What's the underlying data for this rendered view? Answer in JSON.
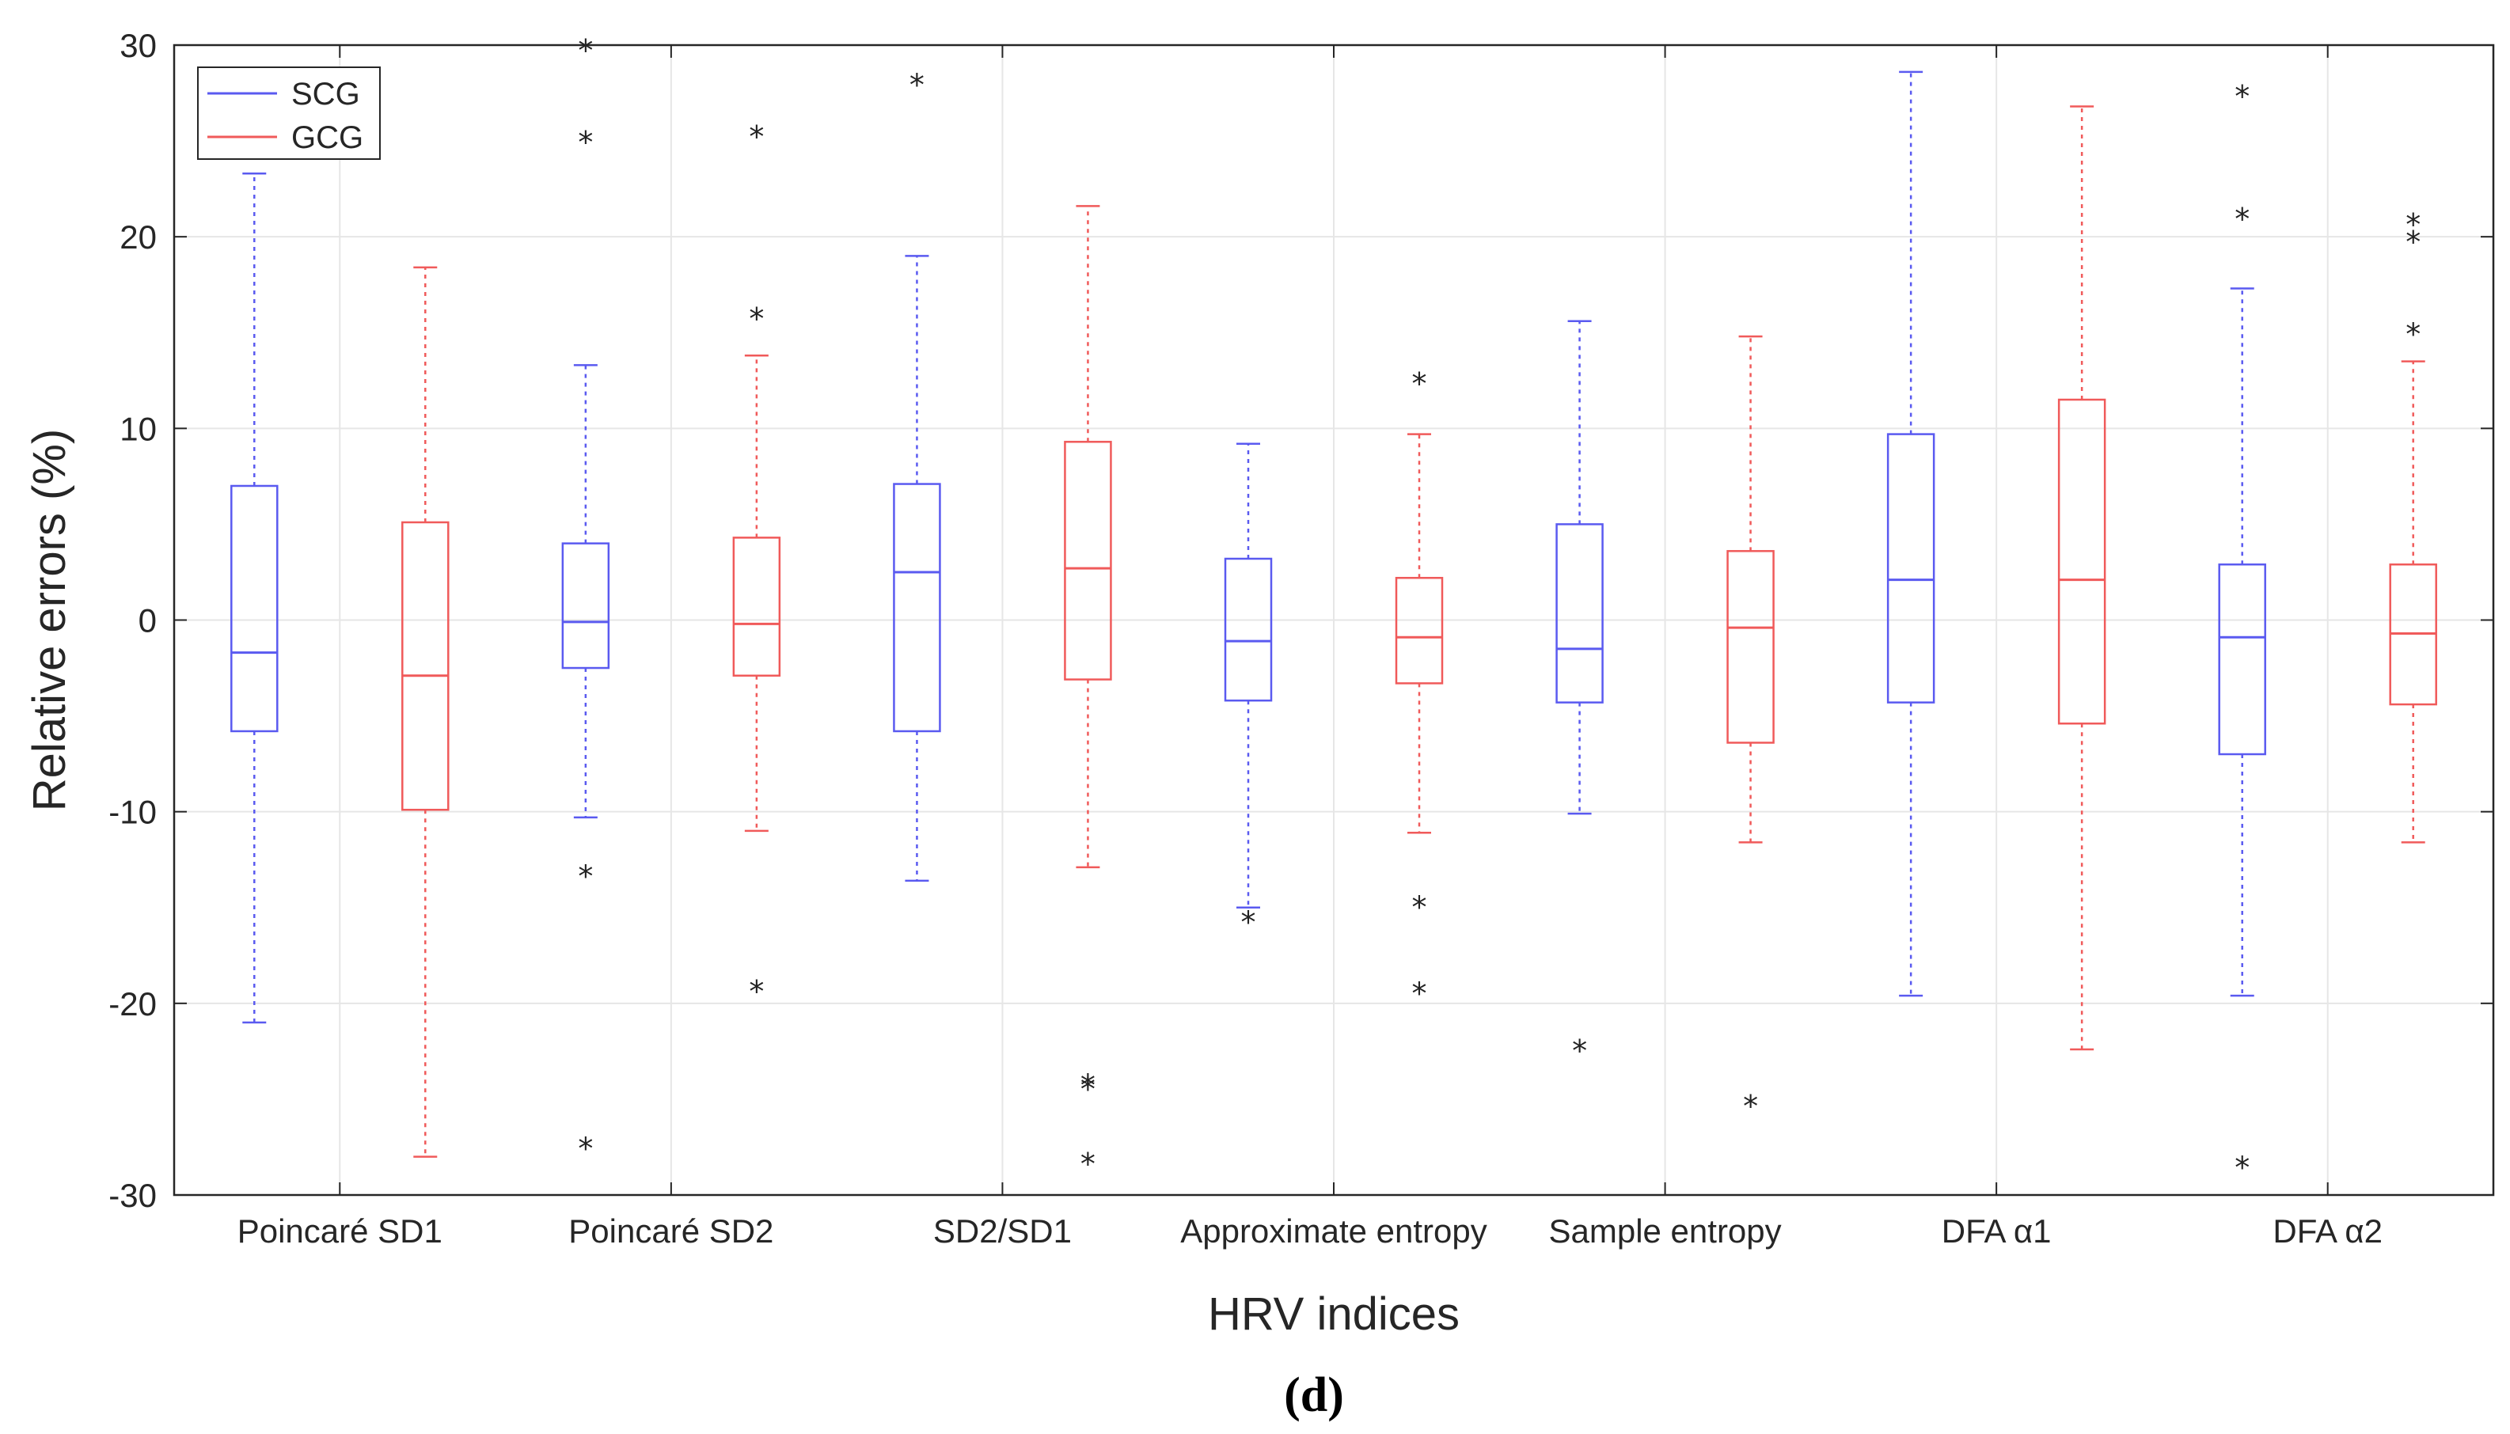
{
  "chart_data": {
    "type": "boxplot",
    "xlabel": "HRV indices",
    "ylabel": "Relative errors (%)",
    "ylim": [
      -30,
      30
    ],
    "yticks": [
      -30,
      -20,
      -10,
      0,
      10,
      20,
      30
    ],
    "grid": true,
    "legend": {
      "position": "top-left",
      "entries": [
        "SCG",
        "GCG"
      ]
    },
    "panel_label": "(d)",
    "categories": [
      "Poincaré SD1",
      "Poincaré SD2",
      "SD2/SD1",
      "Approximate entropy",
      "Sample entropy",
      "DFA α1",
      "DFA α2"
    ],
    "colors": {
      "SCG": "#5a5af0",
      "GCG": "#f05a5a",
      "outlier": "#222222",
      "grid": "#e6e6e6",
      "axis": "#262626"
    },
    "series": [
      {
        "name": "SCG",
        "boxes": [
          {
            "min": -21,
            "q1": -5.8,
            "median": -1.7,
            "q3": 7.0,
            "max": 23.3,
            "outliers": []
          },
          {
            "min": -10.3,
            "q1": -2.5,
            "median": -0.1,
            "q3": 4.0,
            "max": 13.3,
            "outliers": [
              29.8,
              25.0,
              -13.3,
              -27.5
            ]
          },
          {
            "min": -13.6,
            "q1": -5.8,
            "median": 2.5,
            "q3": 7.1,
            "max": 19.0,
            "outliers": [
              28.0
            ]
          },
          {
            "min": -15.0,
            "q1": -4.2,
            "median": -1.1,
            "q3": 3.2,
            "max": 9.2,
            "outliers": [
              -15.7
            ]
          },
          {
            "min": -10.1,
            "q1": -4.3,
            "median": -1.5,
            "q3": 5.0,
            "max": 15.6,
            "outliers": [
              -22.4
            ]
          },
          {
            "min": -19.6,
            "q1": -4.3,
            "median": 2.1,
            "q3": 9.7,
            "max": 28.6,
            "outliers": []
          },
          {
            "min": -19.6,
            "q1": -7.0,
            "median": -0.9,
            "q3": 2.9,
            "max": 17.3,
            "outliers": [
              27.4,
              21.0,
              -28.5
            ]
          }
        ]
      },
      {
        "name": "GCG",
        "boxes": [
          {
            "min": -28.0,
            "q1": -9.9,
            "median": -2.9,
            "q3": 5.1,
            "max": 18.4,
            "outliers": []
          },
          {
            "min": -11.0,
            "q1": -2.9,
            "median": -0.2,
            "q3": 4.3,
            "max": 13.8,
            "outliers": [
              25.3,
              15.8,
              -19.3
            ]
          },
          {
            "min": -12.9,
            "q1": -3.1,
            "median": 2.7,
            "q3": 9.3,
            "max": 21.6,
            "outliers": [
              -24.2,
              -24.4,
              -28.3
            ]
          },
          {
            "min": -11.1,
            "q1": -3.3,
            "median": -0.9,
            "q3": 2.2,
            "max": 9.7,
            "outliers": [
              12.4,
              -14.9,
              -19.4
            ]
          },
          {
            "min": -11.6,
            "q1": -6.4,
            "median": -0.4,
            "q3": 3.6,
            "max": 14.8,
            "outliers": [
              -25.3
            ]
          },
          {
            "min": -22.4,
            "q1": -5.4,
            "median": 2.1,
            "q3": 11.5,
            "max": 26.8,
            "outliers": []
          },
          {
            "min": -11.6,
            "q1": -4.4,
            "median": -0.7,
            "q3": 2.9,
            "max": 13.5,
            "outliers": [
              20.7,
              19.8,
              15.0
            ]
          }
        ]
      }
    ]
  }
}
